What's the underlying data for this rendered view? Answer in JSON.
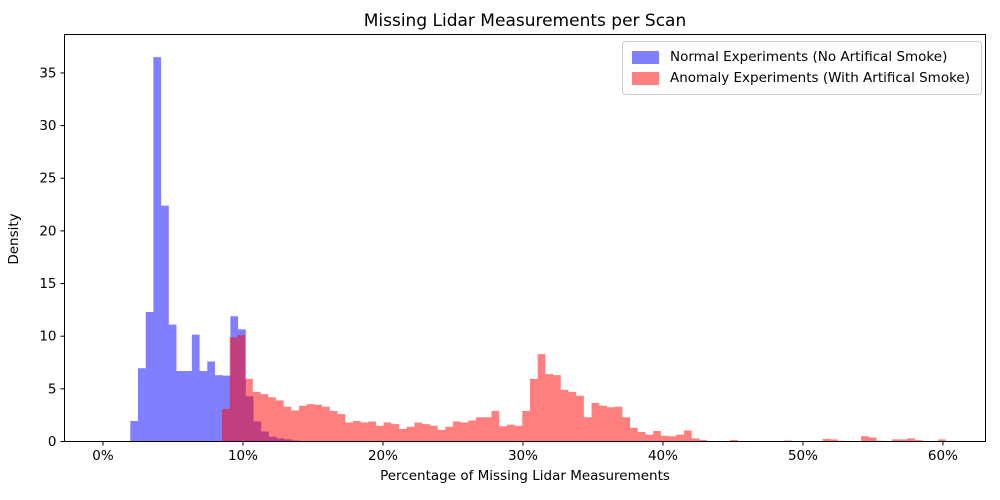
{
  "chart_data": {
    "type": "histogram",
    "title": "Missing Lidar Measurements per Scan",
    "xlabel": "Percentage of Missing Lidar Measurements",
    "ylabel": "Density",
    "grid": false,
    "legend_position": "upper right",
    "background_color": "#ffffff",
    "spine_color": "#000000",
    "text_color": "#000000",
    "overlap_blend_color": "#bf4080",
    "xlim_pct": [
      -2.75,
      63.04
    ],
    "ylim": [
      0,
      38.65
    ],
    "x_ticks": [
      {
        "value": 0,
        "label": "0%"
      },
      {
        "value": 10,
        "label": "10%"
      },
      {
        "value": 20,
        "label": "20%"
      },
      {
        "value": 30,
        "label": "30%"
      },
      {
        "value": 40,
        "label": "40%"
      },
      {
        "value": 50,
        "label": "50%"
      },
      {
        "value": 60,
        "label": "60%"
      }
    ],
    "y_ticks": [
      0,
      5,
      10,
      15,
      20,
      25,
      30,
      35
    ],
    "series": [
      {
        "name": "Normal Experiments (No Artifical Smoke)",
        "color": "#0000ff",
        "alpha": 0.5,
        "legend_swatch": "#8080ff",
        "bin_start_pct": 1.95,
        "bin_width_pct": 0.55,
        "densities": [
          1.95,
          6.95,
          12.3,
          36.5,
          22.4,
          11.1,
          6.7,
          6.7,
          10.15,
          6.7,
          7.6,
          6.3,
          6.25,
          11.9,
          10.65,
          4.3,
          1.9,
          0.95,
          0.45,
          0.3,
          0.2,
          0.1,
          0.05,
          0.05,
          0.05
        ]
      },
      {
        "name": "Anomaly Experiments (With Artifical Smoke)",
        "color": "#ff0000",
        "alpha": 0.5,
        "legend_swatch": "#ff8080",
        "bin_start_pct": 8.5,
        "bin_width_pct": 0.55,
        "densities": [
          3.1,
          9.9,
          10.1,
          5.95,
          4.7,
          4.5,
          4.2,
          3.9,
          3.3,
          2.95,
          3.4,
          3.55,
          3.5,
          3.3,
          2.9,
          2.6,
          1.8,
          1.95,
          1.8,
          1.9,
          1.5,
          1.8,
          1.65,
          1.2,
          1.4,
          1.8,
          1.65,
          1.5,
          1.1,
          1.4,
          1.9,
          1.8,
          2.0,
          2.3,
          2.3,
          2.9,
          1.45,
          1.6,
          1.5,
          2.9,
          5.95,
          8.3,
          6.4,
          6.3,
          4.9,
          4.7,
          4.35,
          2.3,
          3.65,
          3.4,
          3.25,
          3.3,
          2.3,
          1.3,
          0.9,
          0.65,
          1.0,
          0.55,
          0.5,
          0.65,
          1.05,
          0.3,
          0.15,
          0.05,
          0,
          0,
          0.15,
          0.05,
          0,
          0,
          0,
          0,
          0,
          0.1,
          0.05,
          0,
          0,
          0,
          0.25,
          0.2,
          0.07,
          0,
          0,
          0.5,
          0.38,
          0.07,
          0,
          0.2,
          0.2,
          0.3,
          0.13,
          0,
          0,
          0.2
        ]
      }
    ]
  }
}
